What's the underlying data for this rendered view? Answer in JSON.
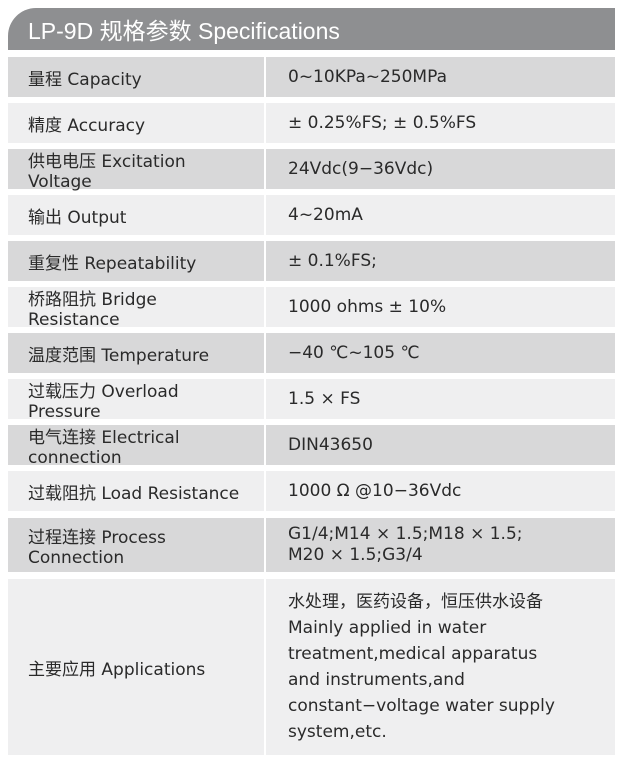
{
  "title": "LP-9D 规格参数 Specifications",
  "rows": [
    {
      "label": "量程 Capacity",
      "value": "0~10KPa~250MPa"
    },
    {
      "label": "精度 Accuracy",
      "value": "± 0.25%FS; ± 0.5%FS"
    },
    {
      "label": "供电电压 Excitation Voltage",
      "value": "24Vdc(9−36Vdc)"
    },
    {
      "label": "输出 Output",
      "value": "4~20mA"
    },
    {
      "label": "重复性 Repeatability",
      "value": "± 0.1%FS;"
    },
    {
      "label": "桥路阻抗 Bridge Resistance",
      "value": "1000 ohms ± 10%"
    },
    {
      "label": "温度范围 Temperature",
      "value": "−40 ℃~105 ℃"
    },
    {
      "label": "过载压力 Overload Pressure",
      "value": "1.5 × FS"
    },
    {
      "label": "电气连接 Electrical connection",
      "value": "DIN43650"
    },
    {
      "label": "过载阻抗 Load Resistance",
      "value": "1000 Ω @10−36Vdc"
    },
    {
      "label": "过程连接 Process Connection",
      "value": "G1/4;M14 × 1.5;M18 × 1.5;",
      "value2": "M20 × 1.5;G3/4"
    },
    {
      "label": "主要应用 Applications",
      "lines": [
        "水处理，医药设备，恒压供水设备",
        "Mainly applied in water",
        "treatment,medical apparatus",
        "and instruments,and",
        "constant−voltage water supply",
        "system,etc."
      ]
    }
  ]
}
